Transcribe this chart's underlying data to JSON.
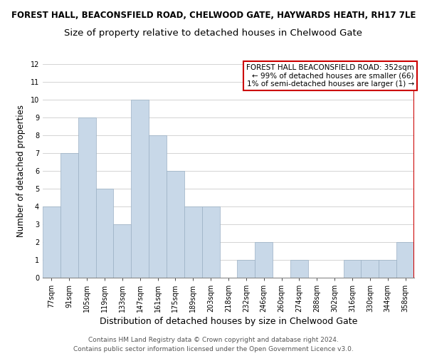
{
  "title_line1": "FOREST HALL, BEACONSFIELD ROAD, CHELWOOD GATE, HAYWARDS HEATH, RH17 7LE",
  "title_line2": "Size of property relative to detached houses in Chelwood Gate",
  "xlabel": "Distribution of detached houses by size in Chelwood Gate",
  "ylabel": "Number of detached properties",
  "footer_line1": "Contains HM Land Registry data © Crown copyright and database right 2024.",
  "footer_line2": "Contains public sector information licensed under the Open Government Licence v3.0.",
  "bin_labels": [
    "77sqm",
    "91sqm",
    "105sqm",
    "119sqm",
    "133sqm",
    "147sqm",
    "161sqm",
    "175sqm",
    "189sqm",
    "203sqm",
    "218sqm",
    "232sqm",
    "246sqm",
    "260sqm",
    "274sqm",
    "288sqm",
    "302sqm",
    "316sqm",
    "330sqm",
    "344sqm",
    "358sqm"
  ],
  "bar_heights": [
    4,
    7,
    9,
    5,
    3,
    10,
    8,
    6,
    4,
    4,
    0,
    1,
    2,
    0,
    1,
    0,
    0,
    1,
    1,
    1,
    2
  ],
  "bar_color": "#c8d8e8",
  "bar_edge_color": "#9ab0c4",
  "highlight_bar_index": 20,
  "highlight_bar_edge_color": "#cc0000",
  "annotation_box_text_line1": "FOREST HALL BEACONSFIELD ROAD: 352sqm",
  "annotation_box_text_line2": "← 99% of detached houses are smaller (66)",
  "annotation_box_text_line3": "1% of semi-detached houses are larger (1) →",
  "annotation_box_edge_color": "#cc0000",
  "annotation_box_facecolor": "#ffffff",
  "ylim": [
    0,
    12
  ],
  "yticks": [
    0,
    1,
    2,
    3,
    4,
    5,
    6,
    7,
    8,
    9,
    10,
    11,
    12
  ],
  "grid_color": "#cccccc",
  "title1_fontsize": 8.5,
  "title2_fontsize": 9.5,
  "xlabel_fontsize": 9,
  "ylabel_fontsize": 8.5,
  "tick_fontsize": 7,
  "annotation_fontsize": 7.5,
  "footer_fontsize": 6.5,
  "n_bars": 21
}
